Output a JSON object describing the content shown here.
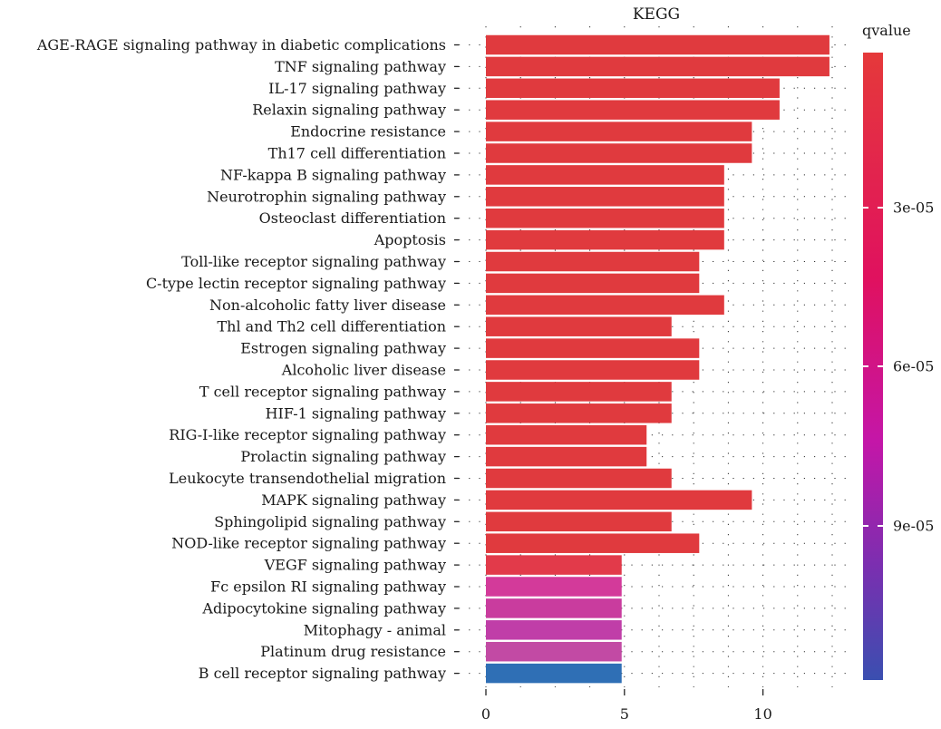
{
  "chart_data": {
    "type": "bar",
    "orientation": "horizontal",
    "title": "KEGG",
    "xlabel": "",
    "ylabel": "",
    "xlim": [
      0,
      13.2
    ],
    "xticks": [
      0,
      5,
      10
    ],
    "grid": true,
    "categories": [
      "AGE-RAGE signaling pathway in diabetic complications",
      "TNF signaling pathway",
      "IL-17 signaling pathway",
      "Relaxin signaling pathway",
      "Endocrine resistance",
      "Th17 cell differentiation",
      "NF-kappa B signaling pathway",
      "Neurotrophin signaling pathway",
      "Osteoclast differentiation",
      "Apoptosis",
      "Toll-like receptor signaling pathway",
      "C-type lectin receptor signaling pathway",
      "Non-alcoholic fatty liver disease",
      "Thl and Th2 cell differentiation",
      "Estrogen signaling pathway",
      "Alcoholic liver disease",
      "T cell receptor signaling pathway",
      "HIF-1 signaling pathway",
      "RIG-I-like receptor signaling pathway",
      "Prolactin signaling pathway",
      "Leukocyte transendothelial migration",
      "MAPK signaling pathway",
      "Sphingolipid signaling pathway",
      "NOD-like receptor signaling pathway",
      "VEGF signaling pathway",
      "Fc epsilon RI signaling pathway",
      "Adipocytokine signaling pathway",
      "Mitophagy - animal",
      "Platinum drug resistance",
      "B cell receptor signaling pathway"
    ],
    "values": [
      12.4,
      12.4,
      10.6,
      10.6,
      9.6,
      9.6,
      8.6,
      8.6,
      8.6,
      8.6,
      7.7,
      7.7,
      8.6,
      6.7,
      7.7,
      7.7,
      6.7,
      6.7,
      5.8,
      5.8,
      6.7,
      9.6,
      6.7,
      7.7,
      4.9,
      4.9,
      4.9,
      4.9,
      4.9,
      4.9
    ],
    "bar_colors": [
      "#e03a3e",
      "#e03a3e",
      "#e03a3e",
      "#e03a3e",
      "#e03a3e",
      "#e03a3e",
      "#e03a3e",
      "#e03a3e",
      "#e03a3e",
      "#e03a3e",
      "#e03a3e",
      "#e03a3e",
      "#e03a3e",
      "#e03a3e",
      "#e03a3e",
      "#e03a3e",
      "#e03a3e",
      "#e03a3e",
      "#e03a3e",
      "#e03a3e",
      "#e03a3e",
      "#e03a3e",
      "#e03a3e",
      "#e03a3e",
      "#e23a4a",
      "#d33a9a",
      "#c93c9e",
      "#c03ea8",
      "#c24aa4",
      "#2f6fb5"
    ],
    "legend": {
      "title": "qvalue",
      "position": "right",
      "ticks": [
        "3e-05",
        "6e-05",
        "9e-05"
      ],
      "colors": [
        "#e5393a",
        "#e0115f",
        "#c416a8",
        "#7a2fb0",
        "#3a4fb0"
      ]
    }
  }
}
